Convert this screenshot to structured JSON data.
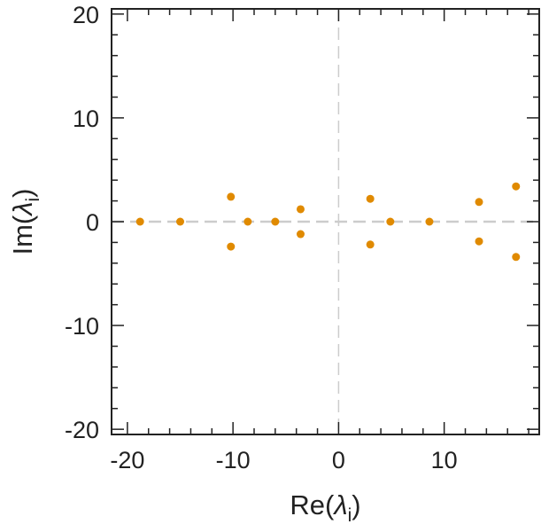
{
  "chart_data": {
    "type": "scatter",
    "title": "",
    "xlabel": {
      "prefix": "Re(",
      "symbol": "λ",
      "subscript": "i",
      "suffix": ")"
    },
    "ylabel": {
      "prefix": "Im(",
      "symbol": "λ",
      "subscript": "i",
      "suffix": ")"
    },
    "xlim": [
      -21.5,
      19
    ],
    "ylim": [
      -20.5,
      20.5
    ],
    "xticks": [
      -20,
      -10,
      0,
      10
    ],
    "xtick_labels": [
      "-20",
      "-10",
      "0",
      "10"
    ],
    "yticks": [
      -20,
      -10,
      0,
      10,
      20
    ],
    "ytick_labels": [
      "-20",
      "-10",
      "0",
      "10",
      "20"
    ],
    "grid": false,
    "reference_lines": {
      "x": 0,
      "y": 0,
      "style": "dashed",
      "color": "#cccccc"
    },
    "point_color": "#e08a00",
    "points": [
      {
        "x": -18.8,
        "y": 0
      },
      {
        "x": -15.0,
        "y": 0
      },
      {
        "x": -10.2,
        "y": 2.4
      },
      {
        "x": -10.2,
        "y": -2.4
      },
      {
        "x": -8.6,
        "y": 0
      },
      {
        "x": -6.0,
        "y": 0
      },
      {
        "x": -3.6,
        "y": 1.2
      },
      {
        "x": -3.6,
        "y": -1.2
      },
      {
        "x": 3.0,
        "y": 2.2
      },
      {
        "x": 3.0,
        "y": -2.2
      },
      {
        "x": 4.9,
        "y": 0
      },
      {
        "x": 8.6,
        "y": 0
      },
      {
        "x": 13.3,
        "y": 1.9
      },
      {
        "x": 13.3,
        "y": -1.9
      },
      {
        "x": 16.8,
        "y": 3.4
      },
      {
        "x": 16.8,
        "y": -3.4
      }
    ]
  }
}
